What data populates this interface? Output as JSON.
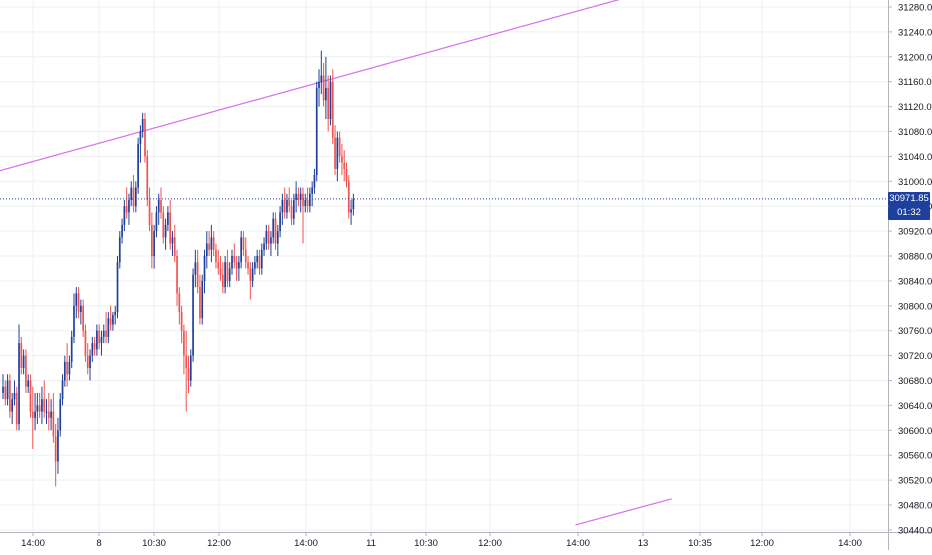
{
  "chart_data": {
    "type": "candlestick",
    "y_axis_ticks": [
      "31280.00",
      "31240.00",
      "31200.00",
      "31160.00",
      "31120.00",
      "31080.00",
      "31040.00",
      "31000.00",
      "30960.00",
      "30920.00",
      "30880.00",
      "30840.00",
      "30800.00",
      "30760.00",
      "30720.00",
      "30680.00",
      "30640.00",
      "30600.00",
      "30560.00",
      "30520.00",
      "30480.00",
      "30440.00"
    ],
    "x_axis_ticks": [
      "14:00",
      "8",
      "10:30",
      "12:00",
      "14:00",
      "11",
      "10:30",
      "12:00",
      "14:00",
      "13",
      "10:35",
      "12:00",
      "14:00"
    ],
    "ylim": [
      30440,
      31300
    ],
    "grid": true,
    "last_price": "30971.85",
    "countdown": "01:32",
    "colors": {
      "up": "#1e3f9c",
      "down": "#ef5350",
      "trendline": "#d66ff0",
      "grid": "#eef0f3",
      "last_price_line": "#1e3f9c"
    },
    "trendlines": [
      {
        "from": {
          "bar": -28,
          "price": 30990
        },
        "to": {
          "bar": 275,
          "price": 31298
        }
      },
      {
        "from": {
          "bar": 250,
          "price": 30448
        },
        "to": {
          "bar": 292,
          "price": 30490
        }
      }
    ],
    "session_start_bars": [
      0,
      50,
      102,
      156,
      196,
      250
    ],
    "candles": [
      [
        30660,
        30690,
        30650,
        30670
      ],
      [
        30670,
        30680,
        30640,
        30650
      ],
      [
        30650,
        30690,
        30640,
        30680
      ],
      [
        30680,
        30690,
        30620,
        30630
      ],
      [
        30630,
        30660,
        30610,
        30650
      ],
      [
        30650,
        30680,
        30640,
        30660
      ],
      [
        30660,
        30670,
        30600,
        30610
      ],
      [
        30610,
        30770,
        30600,
        30740
      ],
      [
        30740,
        30750,
        30690,
        30700
      ],
      [
        30700,
        30730,
        30690,
        30720
      ],
      [
        30720,
        30730,
        30660,
        30670
      ],
      [
        30670,
        30690,
        30660,
        30680
      ],
      [
        30680,
        30690,
        30620,
        30630
      ],
      [
        30630,
        30670,
        30570,
        30620
      ],
      [
        30620,
        30660,
        30600,
        30630
      ],
      [
        30630,
        30660,
        30610,
        30640
      ],
      [
        30640,
        30660,
        30620,
        30630
      ],
      [
        30630,
        30670,
        30610,
        30650
      ],
      [
        30650,
        30680,
        30620,
        30630
      ],
      [
        30630,
        30650,
        30610,
        30630
      ],
      [
        30630,
        30660,
        30600,
        30620
      ],
      [
        30620,
        30650,
        30600,
        30630
      ],
      [
        30630,
        30660,
        30580,
        30590
      ],
      [
        30590,
        30610,
        30510,
        30550
      ],
      [
        30550,
        30620,
        30530,
        30600
      ],
      [
        30600,
        30660,
        30590,
        30650
      ],
      [
        30650,
        30690,
        30640,
        30680
      ],
      [
        30680,
        30720,
        30670,
        30710
      ],
      [
        30710,
        30740,
        30670,
        30690
      ],
      [
        30690,
        30720,
        30680,
        30710
      ],
      [
        30710,
        30760,
        30700,
        30750
      ],
      [
        30750,
        30820,
        30740,
        30800
      ],
      [
        30800,
        30830,
        30780,
        30820
      ],
      [
        30820,
        30830,
        30780,
        30790
      ],
      [
        30790,
        30810,
        30770,
        30800
      ],
      [
        30800,
        30810,
        30750,
        30760
      ],
      [
        30760,
        30770,
        30710,
        30720
      ],
      [
        30720,
        30740,
        30690,
        30700
      ],
      [
        30700,
        30730,
        30680,
        30720
      ],
      [
        30720,
        30750,
        30710,
        30740
      ],
      [
        30740,
        30750,
        30720,
        30730
      ],
      [
        30730,
        30770,
        30720,
        30760
      ],
      [
        30760,
        30770,
        30730,
        30740
      ],
      [
        30740,
        30760,
        30720,
        30750
      ],
      [
        30750,
        30770,
        30740,
        30760
      ],
      [
        30760,
        30790,
        30740,
        30750
      ],
      [
        30750,
        30790,
        30740,
        30780
      ],
      [
        30780,
        30800,
        30760,
        30770
      ],
      [
        30770,
        30790,
        30760,
        30785
      ],
      [
        30785,
        30800,
        30770,
        30790
      ],
      [
        30790,
        30880,
        30780,
        30870
      ],
      [
        30870,
        30920,
        30860,
        30910
      ],
      [
        30910,
        30940,
        30900,
        30930
      ],
      [
        30930,
        30970,
        30920,
        30960
      ],
      [
        30960,
        30990,
        30940,
        30950
      ],
      [
        30950,
        30980,
        30930,
        30970
      ],
      [
        30970,
        31000,
        30960,
        30990
      ],
      [
        30990,
        31010,
        30950,
        30960
      ],
      [
        30960,
        31000,
        30950,
        30990
      ],
      [
        30990,
        31070,
        30980,
        31060
      ],
      [
        31060,
        31090,
        31030,
        31080
      ],
      [
        31080,
        31110,
        31070,
        31100
      ],
      [
        31100,
        31110,
        31030,
        31040
      ],
      [
        31040,
        31050,
        30960,
        30970
      ],
      [
        30970,
        30990,
        30920,
        30930
      ],
      [
        30930,
        30950,
        30860,
        30880
      ],
      [
        30880,
        30930,
        30860,
        30920
      ],
      [
        30920,
        30960,
        30910,
        30950
      ],
      [
        30950,
        30980,
        30930,
        30970
      ],
      [
        30970,
        30990,
        30940,
        30950
      ],
      [
        30950,
        30960,
        30900,
        30910
      ],
      [
        30910,
        30940,
        30890,
        30930
      ],
      [
        30930,
        30960,
        30920,
        30950
      ],
      [
        30950,
        30970,
        30890,
        30900
      ],
      [
        30900,
        30920,
        30880,
        30910
      ],
      [
        30910,
        30930,
        30870,
        30880
      ],
      [
        30880,
        30890,
        30800,
        30820
      ],
      [
        30820,
        30830,
        30770,
        30790
      ],
      [
        30790,
        30800,
        30740,
        30760
      ],
      [
        30760,
        30770,
        30690,
        30720
      ],
      [
        30720,
        30760,
        30630,
        30700
      ],
      [
        30700,
        30720,
        30660,
        30680
      ],
      [
        30680,
        30730,
        30670,
        30720
      ],
      [
        30720,
        30860,
        30710,
        30850
      ],
      [
        30850,
        30890,
        30830,
        30870
      ],
      [
        30870,
        30890,
        30820,
        30830
      ],
      [
        30830,
        30850,
        30770,
        30780
      ],
      [
        30780,
        30850,
        30770,
        30840
      ],
      [
        30840,
        30890,
        30820,
        30880
      ],
      [
        30880,
        30920,
        30860,
        30900
      ],
      [
        30900,
        30920,
        30880,
        30890
      ],
      [
        30890,
        30930,
        30870,
        30910
      ],
      [
        30910,
        30920,
        30880,
        30890
      ],
      [
        30890,
        30900,
        30860,
        30870
      ],
      [
        30870,
        30890,
        30850,
        30860
      ],
      [
        30860,
        30880,
        30840,
        30850
      ],
      [
        30850,
        30870,
        30820,
        30830
      ],
      [
        30830,
        30880,
        30820,
        30870
      ],
      [
        30870,
        30890,
        30830,
        30840
      ],
      [
        30840,
        30870,
        30830,
        30860
      ],
      [
        30860,
        30890,
        30850,
        30880
      ],
      [
        30880,
        30900,
        30860,
        30870
      ],
      [
        30870,
        30880,
        30840,
        30860
      ],
      [
        30860,
        30880,
        30840,
        30870
      ],
      [
        30870,
        30920,
        30860,
        30910
      ],
      [
        30910,
        30920,
        30880,
        30890
      ],
      [
        30890,
        30910,
        30860,
        30870
      ],
      [
        30870,
        30880,
        30850,
        30860
      ],
      [
        30860,
        30870,
        30810,
        30840
      ],
      [
        30840,
        30870,
        30830,
        30860
      ],
      [
        30860,
        30880,
        30850,
        30870
      ],
      [
        30870,
        30890,
        30860,
        30880
      ],
      [
        30880,
        30890,
        30850,
        30860
      ],
      [
        30860,
        30900,
        30850,
        30890
      ],
      [
        30890,
        30910,
        30880,
        30900
      ],
      [
        30900,
        30930,
        30890,
        30920
      ],
      [
        30920,
        30930,
        30890,
        30900
      ],
      [
        30900,
        30920,
        30880,
        30910
      ],
      [
        30910,
        30950,
        30900,
        30940
      ],
      [
        30940,
        30950,
        30890,
        30900
      ],
      [
        30900,
        30930,
        30880,
        30920
      ],
      [
        30920,
        30960,
        30910,
        30950
      ],
      [
        30950,
        30980,
        30930,
        30970
      ],
      [
        30970,
        30990,
        30940,
        30950
      ],
      [
        30950,
        30980,
        30940,
        30970
      ],
      [
        30970,
        30990,
        30950,
        30960
      ],
      [
        30960,
        30970,
        30930,
        30940
      ],
      [
        30940,
        30980,
        30930,
        30970
      ],
      [
        30970,
        31000,
        30950,
        30980
      ],
      [
        30980,
        30990,
        30960,
        30970
      ],
      [
        30970,
        30990,
        30950,
        30980
      ],
      [
        30980,
        30990,
        30900,
        30960
      ],
      [
        30960,
        30980,
        30950,
        30970
      ],
      [
        30970,
        30990,
        30950,
        30960
      ],
      [
        30960,
        30990,
        30950,
        30980
      ],
      [
        30980,
        31000,
        30960,
        30990
      ],
      [
        30990,
        31020,
        30980,
        31010
      ],
      [
        31010,
        31160,
        31000,
        31150
      ],
      [
        31150,
        31180,
        31120,
        31160
      ],
      [
        31160,
        31210,
        31140,
        31170
      ],
      [
        31170,
        31190,
        31120,
        31130
      ],
      [
        31130,
        31200,
        31100,
        31150
      ],
      [
        31150,
        31170,
        31080,
        31100
      ],
      [
        31100,
        31170,
        31090,
        31160
      ],
      [
        31160,
        31180,
        31060,
        31070
      ],
      [
        31070,
        31090,
        31010,
        31020
      ],
      [
        31020,
        31080,
        31000,
        31070
      ],
      [
        31070,
        31080,
        31030,
        31040
      ],
      [
        31040,
        31060,
        31010,
        31030
      ],
      [
        31030,
        31050,
        31000,
        31020
      ],
      [
        31020,
        31030,
        30990,
        31000
      ],
      [
        31000,
        31010,
        30940,
        30950
      ],
      [
        30950,
        30970,
        30930,
        30955
      ],
      [
        30955,
        30980,
        30945,
        30972
      ]
    ]
  }
}
